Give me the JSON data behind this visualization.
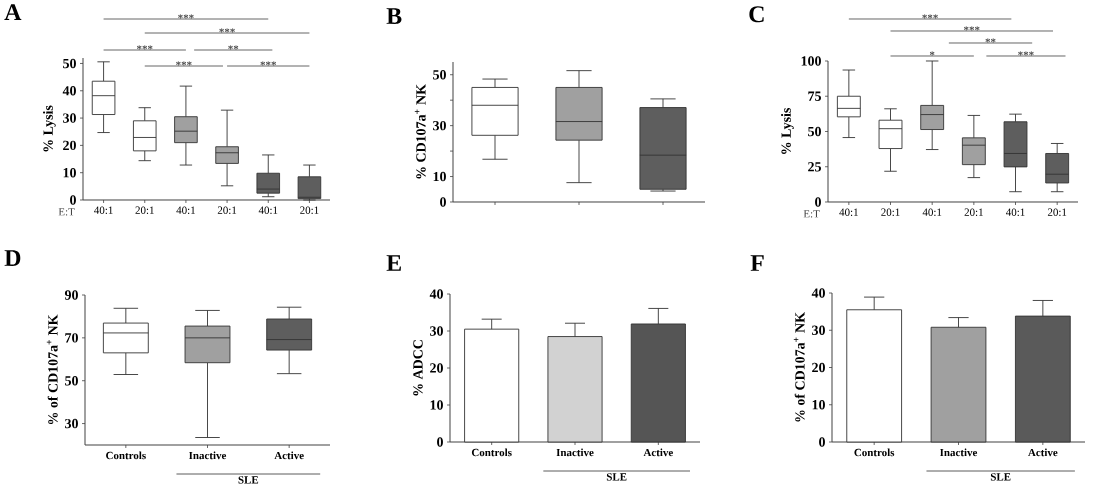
{
  "chart_data": [
    {
      "type": "box",
      "title": "A",
      "ylabel": "% Lysis",
      "xlabel": "E:T",
      "categories": [
        "40:1",
        "20:1",
        "40:1",
        "20:1",
        "40:1",
        "20:1"
      ],
      "boxes": [
        {
          "low": 24.7,
          "q1": 31.3,
          "median": 38.2,
          "q3": 43.5,
          "high": 50.6
        },
        {
          "low": 14.4,
          "q1": 18,
          "median": 22.9,
          "q3": 29,
          "high": 33.8
        },
        {
          "low": 12.8,
          "q1": 21,
          "median": 25.2,
          "q3": 30.5,
          "high": 41.7
        },
        {
          "low": 5.2,
          "q1": 13.4,
          "median": 17.3,
          "q3": 19.5,
          "high": 32.9
        },
        {
          "low": 1.2,
          "q1": 2.5,
          "median": 4,
          "q3": 9.8,
          "high": 16.5
        },
        {
          "low": 0,
          "q1": 0.5,
          "median": 1,
          "q3": 8.5,
          "high": 12.8
        }
      ],
      "colors": [
        "#ffffff",
        "#ffffff",
        "#a0a0a0",
        "#a0a0a0",
        "#5e5e5e",
        "#5e5e5e"
      ],
      "ylim": [
        0,
        52
      ],
      "yticks": [
        0,
        10,
        20,
        30,
        40,
        50
      ],
      "annotations": [
        "***",
        "***",
        "***",
        "**",
        "***",
        "***"
      ]
    },
    {
      "type": "box",
      "title": "B",
      "ylabel": "% CD107a$^{+}$ NK",
      "categories": [
        null,
        null,
        null
      ],
      "boxes": [
        {
          "low": 16.8,
          "q1": 26.2,
          "median": 38,
          "q3": 45,
          "high": 48.3
        },
        {
          "low": 7.6,
          "q1": 24.3,
          "median": 31.6,
          "q3": 45,
          "high": 51.6
        },
        {
          "low": 4.3,
          "q1": 5,
          "median": 18.4,
          "q3": 37.1,
          "high": 40.5
        }
      ],
      "colors": [
        "#ffffff",
        "#a0a0a0",
        "#5e5e5e"
      ],
      "ylim": [
        0,
        55
      ],
      "yticks": [
        0,
        10,
        {
          "value": 20,
          "label": null
        },
        30,
        {
          "value": 40,
          "label": null
        },
        50
      ]
    },
    {
      "type": "box",
      "title": "C",
      "ylabel": "% Lysis",
      "xlabel": "E:T",
      "categories": [
        "40:1",
        "20:1",
        "40:1",
        "20:1",
        "40:1",
        "20:1"
      ],
      "boxes": [
        {
          "low": 45.7,
          "q1": 60.4,
          "median": 66.4,
          "q3": 75,
          "high": 93.6
        },
        {
          "low": 21.8,
          "q1": 37.9,
          "median": 52,
          "q3": 58,
          "high": 66.1
        },
        {
          "low": 37.2,
          "q1": 51.4,
          "median": 62,
          "q3": 68.5,
          "high": 100
        },
        {
          "low": 17.3,
          "q1": 26.5,
          "median": 40.3,
          "q3": 45.5,
          "high": 61.4
        },
        {
          "low": 7.3,
          "q1": 24.9,
          "median": 34.4,
          "q3": 56.9,
          "high": 62.3
        },
        {
          "low": 7.3,
          "q1": 13.5,
          "median": 19.7,
          "q3": 34.4,
          "high": 41.5
        }
      ],
      "colors": [
        "#ffffff",
        "#ffffff",
        "#a0a0a0",
        "#a0a0a0",
        "#5e5e5e",
        "#5e5e5e"
      ],
      "ylim": [
        0,
        100
      ],
      "yticks": [
        0,
        25,
        50,
        75,
        100
      ],
      "annotations": [
        "***",
        "***",
        "**",
        "*",
        "***"
      ]
    },
    {
      "type": "box",
      "title": "D",
      "ylabel": "% of CD107a$^{+}$ NK",
      "categories": [
        "Controls",
        "Inactive",
        "Active"
      ],
      "boxes": [
        {
          "low": 52.9,
          "q1": 63,
          "median": 72.3,
          "q3": 76.9,
          "high": 83.8
        },
        {
          "low": 23.5,
          "q1": 58.4,
          "median": 70,
          "q3": 75.5,
          "high": 82.8
        },
        {
          "low": 53.3,
          "q1": 64.3,
          "median": 69.2,
          "q3": 78.8,
          "high": 84.3
        }
      ],
      "colors": [
        "#ffffff",
        "#a0a0a0",
        "#5e5e5e"
      ],
      "ylim": [
        20,
        90
      ],
      "yticks": [
        30,
        50,
        70,
        90
      ],
      "annotations": [
        "SLE"
      ]
    },
    {
      "type": "bar",
      "title": "E",
      "ylabel": "% ADCC",
      "categories": [
        "Controls",
        "Inactive",
        "Active"
      ],
      "values": [
        30.5,
        28.5,
        31.9
      ],
      "errors": [
        2.7,
        3.6,
        4.2
      ],
      "colors": [
        "#ffffff",
        "#d2d2d2",
        "#555555"
      ],
      "ylim": [
        0,
        40
      ],
      "yticks": [
        0,
        10,
        20,
        30,
        40
      ],
      "annotations": [
        "SLE"
      ]
    },
    {
      "type": "bar",
      "title": "F",
      "ylabel": "% of CD107a$^{+}$ NK",
      "categories": [
        "Controls",
        "Inactive",
        "Active"
      ],
      "values": [
        35.5,
        30.8,
        33.8
      ],
      "errors": [
        3.4,
        2.6,
        4.2
      ],
      "colors": [
        "#ffffff",
        "#a0a0a0",
        "#5a5a5a"
      ],
      "ylim": [
        0,
        40
      ],
      "yticks": [
        0,
        10,
        20,
        30,
        40
      ],
      "annotations": [
        "SLE"
      ]
    }
  ]
}
